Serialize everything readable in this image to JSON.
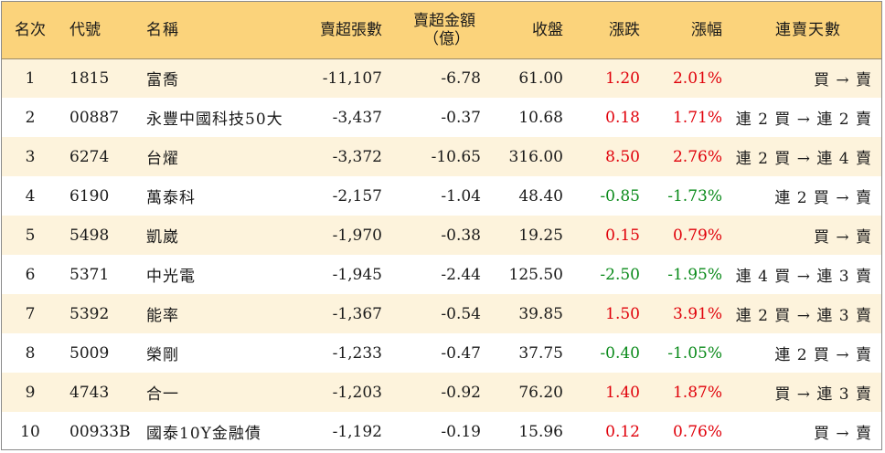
{
  "header": {
    "rank": "名次",
    "code": "代號",
    "name": "名稱",
    "net_sell_shares": "賣超張數",
    "net_sell_amount_line1": "賣超金額",
    "net_sell_amount_line2": "（億）",
    "close": "收盤",
    "change": "漲跌",
    "pct_change": "漲幅",
    "consecutive_days": "連賣天數"
  },
  "colors": {
    "up": "#e0000a",
    "down": "#0a8a1a",
    "header_bg": "#fbd37b",
    "stripe_bg": "#fdf3dc"
  },
  "rows": [
    {
      "rank": "1",
      "code": "1815",
      "name": "富喬",
      "shares": "-11,107",
      "amount": "-6.78",
      "close": "61.00",
      "change": "1.20",
      "pct": "2.01%",
      "dir": "up",
      "days": "買 → 賣"
    },
    {
      "rank": "2",
      "code": "00887",
      "name": "永豐中國科技50大",
      "shares": "-3,437",
      "amount": "-0.37",
      "close": "10.68",
      "change": "0.18",
      "pct": "1.71%",
      "dir": "up",
      "days": "連 2 買 → 連 2 賣"
    },
    {
      "rank": "3",
      "code": "6274",
      "name": "台燿",
      "shares": "-3,372",
      "amount": "-10.65",
      "close": "316.00",
      "change": "8.50",
      "pct": "2.76%",
      "dir": "up",
      "days": "連 2 買 → 連 4 賣"
    },
    {
      "rank": "4",
      "code": "6190",
      "name": "萬泰科",
      "shares": "-2,157",
      "amount": "-1.04",
      "close": "48.40",
      "change": "-0.85",
      "pct": "-1.73%",
      "dir": "down",
      "days": "連 2 買 → 賣"
    },
    {
      "rank": "5",
      "code": "5498",
      "name": "凱崴",
      "shares": "-1,970",
      "amount": "-0.38",
      "close": "19.25",
      "change": "0.15",
      "pct": "0.79%",
      "dir": "up",
      "days": "買 → 賣"
    },
    {
      "rank": "6",
      "code": "5371",
      "name": "中光電",
      "shares": "-1,945",
      "amount": "-2.44",
      "close": "125.50",
      "change": "-2.50",
      "pct": "-1.95%",
      "dir": "down",
      "days": "連 4 買 → 連 3 賣"
    },
    {
      "rank": "7",
      "code": "5392",
      "name": "能率",
      "shares": "-1,367",
      "amount": "-0.54",
      "close": "39.85",
      "change": "1.50",
      "pct": "3.91%",
      "dir": "up",
      "days": "連 2 買 → 連 3 賣"
    },
    {
      "rank": "8",
      "code": "5009",
      "name": "榮剛",
      "shares": "-1,233",
      "amount": "-0.47",
      "close": "37.75",
      "change": "-0.40",
      "pct": "-1.05%",
      "dir": "down",
      "days": "連 2 買 → 賣"
    },
    {
      "rank": "9",
      "code": "4743",
      "name": "合一",
      "shares": "-1,203",
      "amount": "-0.92",
      "close": "76.20",
      "change": "1.40",
      "pct": "1.87%",
      "dir": "up",
      "days": "買 → 連 3 賣"
    },
    {
      "rank": "10",
      "code": "00933B",
      "name": "國泰10Y金融債",
      "shares": "-1,192",
      "amount": "-0.19",
      "close": "15.96",
      "change": "0.12",
      "pct": "0.76%",
      "dir": "up",
      "days": "買 → 賣"
    }
  ]
}
